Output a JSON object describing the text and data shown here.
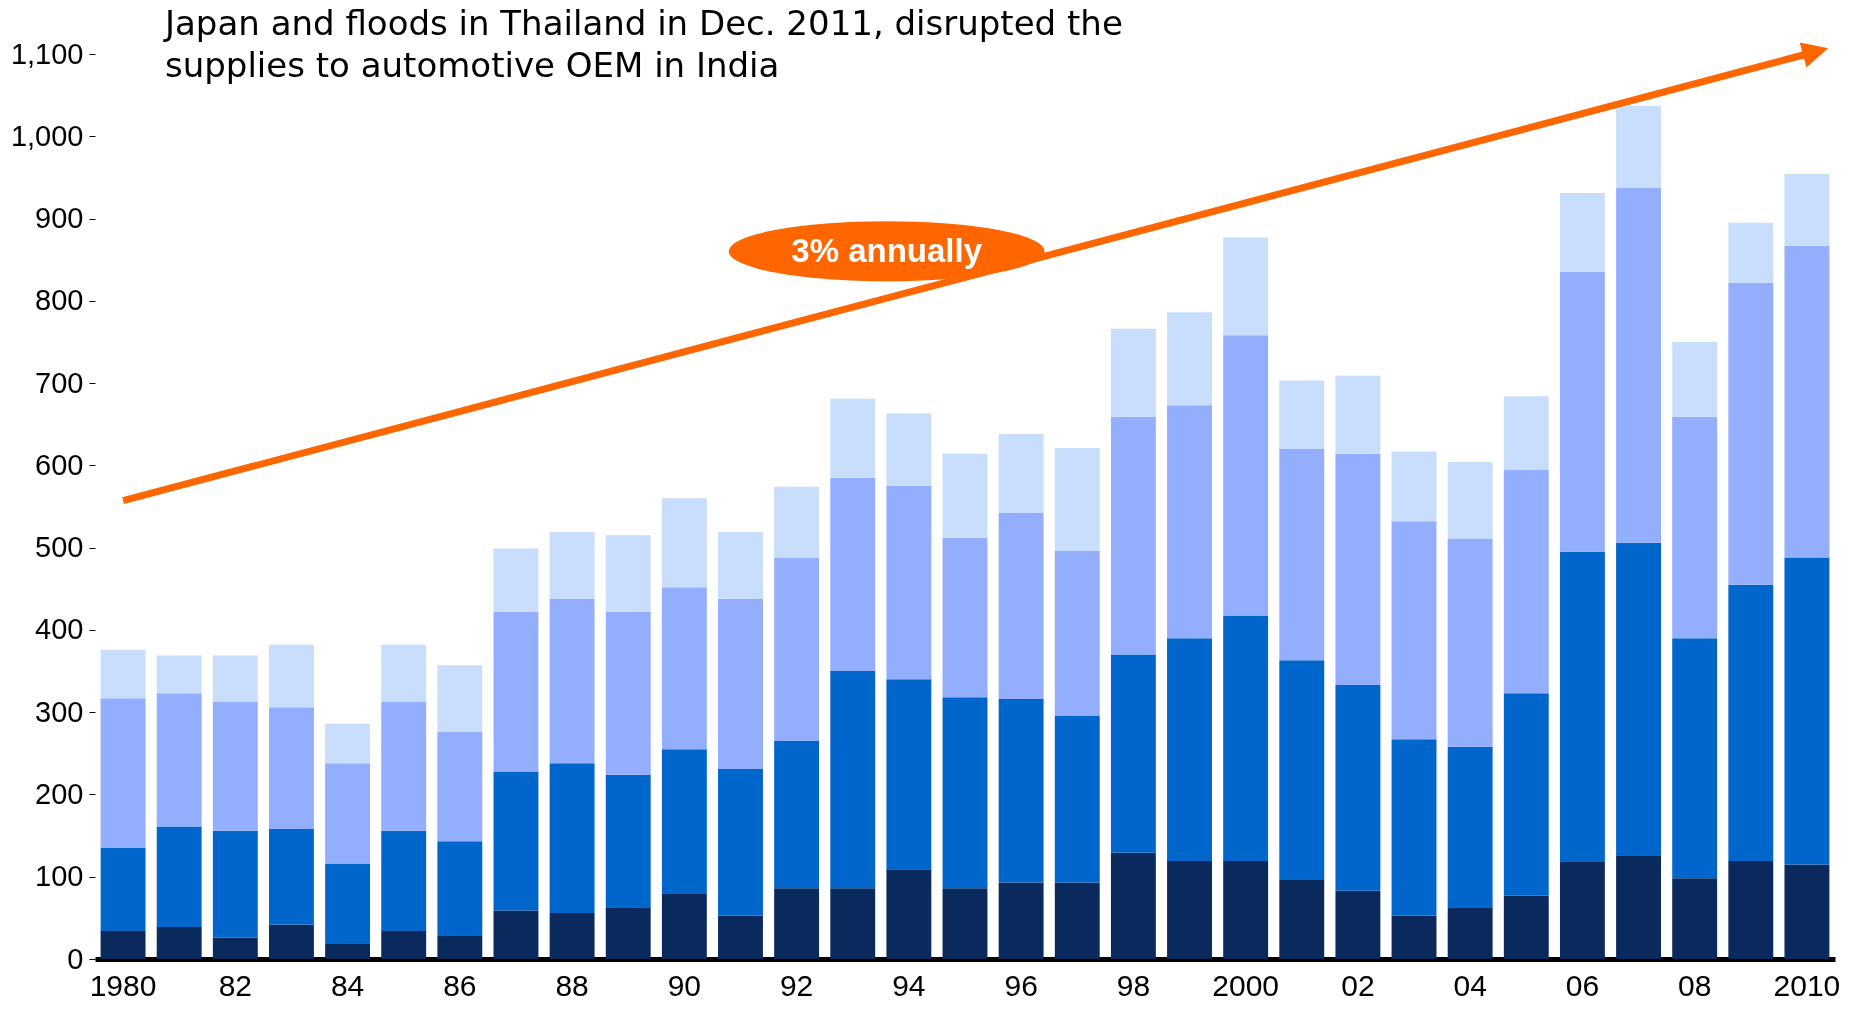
{
  "chart_data": {
    "type": "bar",
    "stacked": true,
    "categories": [
      "1980",
      null,
      "82",
      null,
      "84",
      null,
      "86",
      null,
      "88",
      null,
      "90",
      null,
      "92",
      null,
      "94",
      null,
      "96",
      null,
      "98",
      null,
      "2000",
      null,
      "02",
      null,
      "04",
      null,
      "06",
      null,
      "08",
      null,
      "2010"
    ],
    "series": [
      {
        "color": "#0a2a5e",
        "values": [
          34,
          39,
          26,
          42,
          19,
          34,
          29,
          59,
          56,
          63,
          79,
          53,
          86,
          86,
          109,
          86,
          93,
          93,
          129,
          119,
          119,
          96,
          83,
          53,
          63,
          77,
          118,
          126,
          98,
          119,
          115
        ]
      },
      {
        "color": "#0066cc",
        "values": [
          101,
          122,
          130,
          116,
          97,
          122,
          114,
          169,
          182,
          161,
          176,
          178,
          179,
          264,
          231,
          232,
          223,
          203,
          241,
          271,
          298,
          267,
          250,
          214,
          195,
          246,
          377,
          380,
          292,
          336,
          373
        ]
      },
      {
        "color": "#92aefc",
        "values": [
          182,
          162,
          157,
          148,
          122,
          157,
          133,
          194,
          200,
          198,
          197,
          207,
          223,
          235,
          235,
          194,
          226,
          200,
          289,
          283,
          341,
          257,
          281,
          265,
          253,
          272,
          340,
          431,
          269,
          367,
          379
        ]
      },
      {
        "color": "#c8defc",
        "values": [
          59,
          46,
          56,
          76,
          48,
          69,
          81,
          77,
          81,
          93,
          108,
          81,
          86,
          96,
          88,
          102,
          96,
          125,
          107,
          113,
          119,
          83,
          95,
          85,
          93,
          89,
          96,
          100,
          91,
          73,
          87
        ]
      },
      {
        "type": "line",
        "color": "#ff6600",
        "values": [
          557,
          null,
          null,
          null,
          null,
          null,
          null,
          null,
          null,
          null,
          null,
          null,
          null,
          null,
          null,
          null,
          null,
          null,
          null,
          null,
          null,
          null,
          null,
          null,
          null,
          null,
          null,
          null,
          null,
          null,
          1100
        ]
      }
    ],
    "ylim": [
      0,
      1100
    ],
    "yticks": [
      0,
      100,
      200,
      300,
      400,
      500,
      600,
      700,
      800,
      900,
      {
        "value": 1000,
        "label": "1,000"
      },
      {
        "value": 1100,
        "label": "1,100"
      }
    ],
    "annotations": [
      "Japan and floods in Thailand in Dec. 2011, disrupted the supplies to automotive OEM in India",
      "3% annually"
    ]
  }
}
